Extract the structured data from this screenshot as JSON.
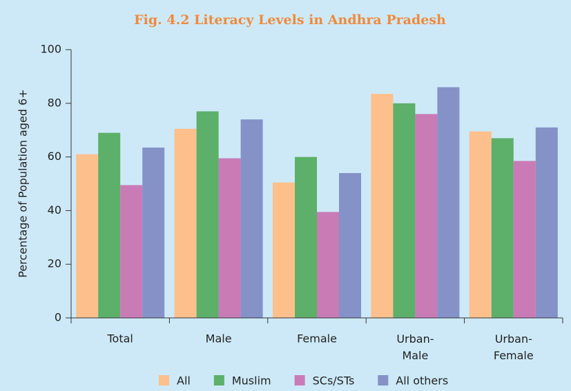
{
  "chart_data": {
    "type": "bar",
    "title": "Fig. 4.2 Literacy Levels in Andhra Pradesh",
    "y_label": "Percentage of Population aged 6+",
    "categories": [
      "Total",
      "Male",
      "Female",
      "Urban-Male",
      "Urban-Female"
    ],
    "series": [
      {
        "name": "All",
        "color": "#fdbf8b",
        "values": [
          61,
          70.5,
          50.5,
          83.5,
          69.5
        ]
      },
      {
        "name": "Muslim",
        "color": "#5cb06a",
        "values": [
          69,
          77,
          60,
          80,
          67
        ]
      },
      {
        "name": "SCs/STs",
        "color": "#c97bb6",
        "values": [
          49.5,
          59.5,
          39.5,
          76,
          58.5
        ]
      },
      {
        "name": "All others",
        "color": "#8592c8",
        "values": [
          63.5,
          74,
          54,
          86,
          71
        ]
      }
    ],
    "ylim": [
      0,
      100
    ],
    "yticks": [
      0,
      20,
      40,
      60,
      80,
      100
    ],
    "legend": "bottom"
  }
}
